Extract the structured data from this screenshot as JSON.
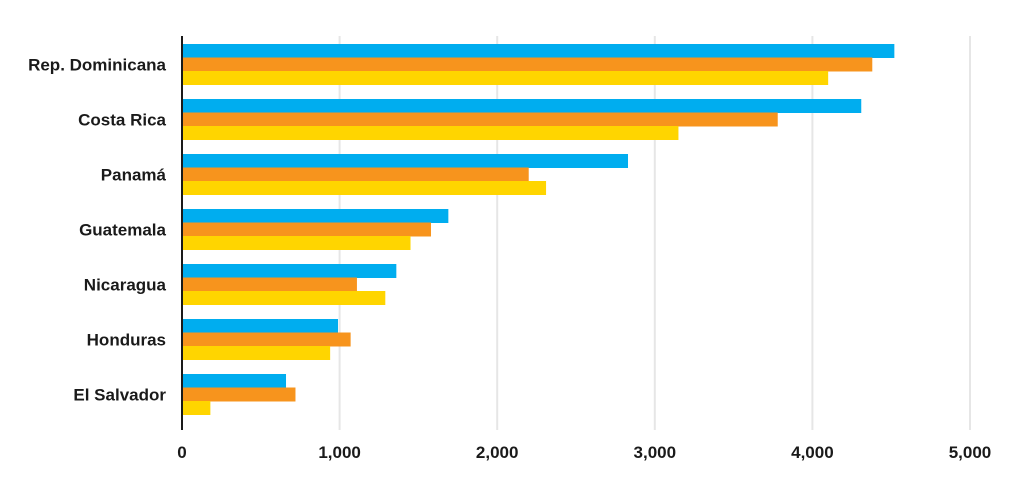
{
  "chart_data": {
    "type": "bar",
    "orientation": "horizontal",
    "title": "",
    "xlabel": "",
    "ylabel": "",
    "categories": [
      "Rep. Dominicana",
      "Costa Rica",
      "Panamá",
      "Guatemala",
      "Nicaragua",
      "Honduras",
      "El Salvador"
    ],
    "series": [
      {
        "color": "#00adef",
        "values": [
          4520,
          4310,
          2830,
          1690,
          1360,
          990,
          660
        ]
      },
      {
        "color": "#f7941d",
        "values": [
          4380,
          3780,
          2200,
          1580,
          1110,
          1070,
          720
        ]
      },
      {
        "color": "#ffd500",
        "values": [
          4100,
          3150,
          2310,
          1450,
          1290,
          940,
          180
        ]
      }
    ],
    "xlim": [
      0,
      5000
    ],
    "ticks": [
      0,
      1000,
      2000,
      3000,
      4000,
      5000
    ],
    "tick_labels": [
      "0",
      "1,000",
      "2,000",
      "3,000",
      "4,000",
      "5,000"
    ],
    "grid": true,
    "legend": "none"
  }
}
